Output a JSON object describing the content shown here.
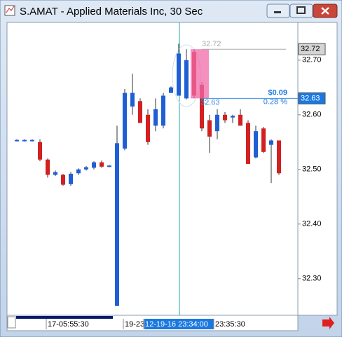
{
  "chart_data": {
    "type": "candlestick",
    "title": "S.AMAT - Applied Materials Inc, 30 Sec",
    "open": [
      32.553,
      32.553,
      32.553,
      32.55,
      32.518,
      32.49,
      32.49,
      32.473,
      32.493,
      32.5,
      32.503,
      32.513,
      32.506,
      32.25,
      32.538,
      32.615,
      32.625,
      32.6,
      32.58,
      32.58,
      32.64,
      32.635,
      32.63,
      32.715,
      32.655,
      32.59,
      32.57,
      32.6,
      32.595,
      32.6,
      32.585,
      32.522,
      32.575,
      32.545,
      32.553
    ],
    "high": [
      32.555,
      32.555,
      32.555,
      32.555,
      32.52,
      32.498,
      32.492,
      32.495,
      32.502,
      32.506,
      32.515,
      32.516,
      32.508,
      32.58,
      32.647,
      32.675,
      32.63,
      32.61,
      32.63,
      32.64,
      32.652,
      32.73,
      32.72,
      32.72,
      32.66,
      32.6,
      32.61,
      32.605,
      32.6,
      32.61,
      32.59,
      32.58,
      32.578,
      32.555,
      32.553
    ],
    "low": [
      32.551,
      32.551,
      32.551,
      32.515,
      32.485,
      32.488,
      32.47,
      32.47,
      32.49,
      32.498,
      32.5,
      32.503,
      32.504,
      32.25,
      32.535,
      32.6,
      32.585,
      32.545,
      32.57,
      32.575,
      32.64,
      32.635,
      32.628,
      32.63,
      32.57,
      32.53,
      32.555,
      32.585,
      32.585,
      32.58,
      32.51,
      32.52,
      32.53,
      32.475,
      32.49
    ],
    "close": [
      32.554,
      32.554,
      32.554,
      32.518,
      32.49,
      32.495,
      32.472,
      32.492,
      32.5,
      32.504,
      32.513,
      32.505,
      32.507,
      32.548,
      32.64,
      32.64,
      32.585,
      32.55,
      32.61,
      32.635,
      32.65,
      32.712,
      32.7,
      32.635,
      32.575,
      32.56,
      32.6,
      32.59,
      32.598,
      32.58,
      32.51,
      32.57,
      32.532,
      32.553,
      32.493
    ],
    "up_color": "#1f5fd6",
    "down_color": "#d32020",
    "ylim": [
      32.233,
      32.769
    ],
    "yticks": [
      {
        "value": 32.7,
        "label": "32.70"
      },
      {
        "value": 32.6,
        "label": "32.60"
      },
      {
        "value": 32.5,
        "label": "32.50"
      },
      {
        "value": 32.4,
        "label": "32.40"
      },
      {
        "value": 32.3,
        "label": "32.30"
      }
    ],
    "price_tags": [
      32.72,
      32.63
    ],
    "measure": {
      "start": 32.72,
      "end": 32.63,
      "start_label": "32.72",
      "change_label": "$0.09",
      "percent_label": "0.28 %",
      "end_label": "32.63"
    },
    "time_labels": [
      "17-05:55:30",
      "19-23",
      "12-19-16 23:34:00",
      "23:35:30"
    ]
  }
}
